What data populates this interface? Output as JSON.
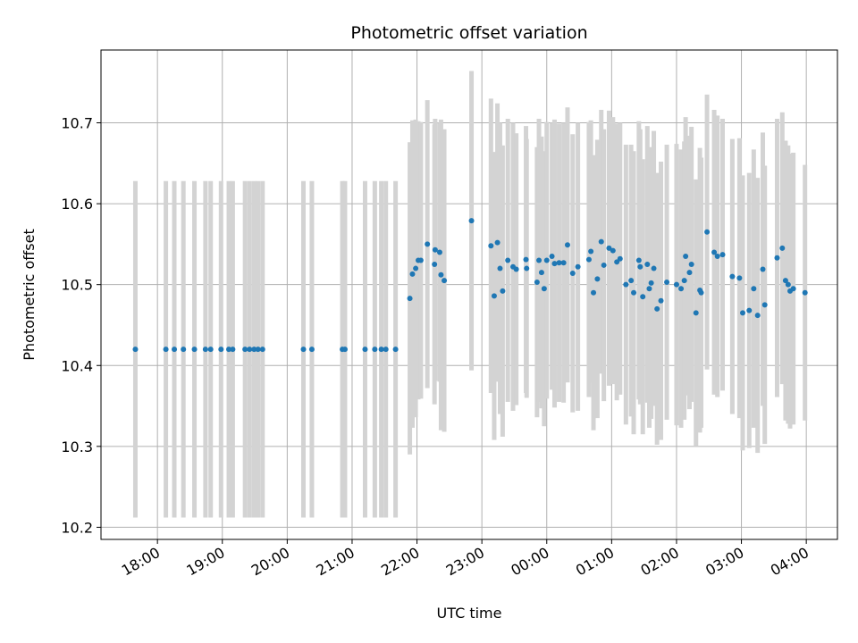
{
  "chart_data": {
    "type": "scatter",
    "title": "Photometric offset variation",
    "xlabel": "UTC time",
    "ylabel": "Photometric offset",
    "x_ticks": [
      "18:00",
      "19:00",
      "20:00",
      "21:00",
      "22:00",
      "23:00",
      "00:00",
      "01:00",
      "02:00",
      "03:00",
      "04:00"
    ],
    "x_tick_hours": [
      18,
      19,
      20,
      21,
      22,
      23,
      24,
      25,
      26,
      27,
      28
    ],
    "y_ticks": [
      "10.2",
      "10.3",
      "10.4",
      "10.5",
      "10.6",
      "10.7"
    ],
    "y_tick_values": [
      10.2,
      10.3,
      10.4,
      10.5,
      10.6,
      10.7
    ],
    "xlim": [
      17.13,
      28.48
    ],
    "ylim": [
      10.185,
      10.79
    ],
    "grid": true,
    "marker_color": "#1f77b4",
    "errorbar_color": "#d3d3d3",
    "x_unit": "hours since 00:00 UTC of the first night (values above 24 fall after midnight)",
    "points": [
      [
        17.66,
        10.42,
        0.208
      ],
      [
        18.13,
        10.42,
        0.208
      ],
      [
        18.26,
        10.42,
        0.208
      ],
      [
        18.4,
        10.42,
        0.208
      ],
      [
        18.57,
        10.42,
        0.208
      ],
      [
        18.74,
        10.42,
        0.208
      ],
      [
        18.82,
        10.42,
        0.208
      ],
      [
        18.98,
        10.42,
        0.208
      ],
      [
        19.1,
        10.42,
        0.208
      ],
      [
        19.16,
        10.42,
        0.208
      ],
      [
        19.35,
        10.42,
        0.208
      ],
      [
        19.42,
        10.42,
        0.208
      ],
      [
        19.49,
        10.42,
        0.208
      ],
      [
        19.55,
        10.42,
        0.208
      ],
      [
        19.62,
        10.42,
        0.208
      ],
      [
        20.25,
        10.42,
        0.208
      ],
      [
        20.38,
        10.42,
        0.208
      ],
      [
        20.85,
        10.42,
        0.208
      ],
      [
        20.89,
        10.42,
        0.208
      ],
      [
        21.2,
        10.42,
        0.208
      ],
      [
        21.35,
        10.42,
        0.208
      ],
      [
        21.45,
        10.42,
        0.208
      ],
      [
        21.52,
        10.42,
        0.208
      ],
      [
        21.67,
        10.42,
        0.208
      ],
      [
        21.89,
        10.483,
        0.193
      ],
      [
        21.93,
        10.513,
        0.19
      ],
      [
        21.98,
        10.52,
        0.184
      ],
      [
        22.02,
        10.53,
        0.172
      ],
      [
        22.06,
        10.53,
        0.171
      ],
      [
        22.16,
        10.55,
        0.178
      ],
      [
        22.27,
        10.525,
        0.173
      ],
      [
        22.28,
        10.543,
        0.162
      ],
      [
        22.35,
        10.54,
        0.16
      ],
      [
        22.37,
        10.512,
        0.192
      ],
      [
        22.42,
        10.505,
        0.187
      ],
      [
        22.84,
        10.579,
        0.185
      ],
      [
        23.14,
        10.548,
        0.182
      ],
      [
        23.19,
        10.486,
        0.178
      ],
      [
        23.24,
        10.552,
        0.172
      ],
      [
        23.28,
        10.52,
        0.18
      ],
      [
        23.32,
        10.492,
        0.18
      ],
      [
        23.4,
        10.53,
        0.175
      ],
      [
        23.48,
        10.522,
        0.178
      ],
      [
        23.53,
        10.519,
        0.168
      ],
      [
        23.68,
        10.531,
        0.165
      ],
      [
        23.69,
        10.52,
        0.16
      ],
      [
        23.85,
        10.503,
        0.167
      ],
      [
        23.88,
        10.53,
        0.175
      ],
      [
        23.92,
        10.515,
        0.168
      ],
      [
        23.96,
        10.495,
        0.17
      ],
      [
        24.0,
        10.53,
        0.171
      ],
      [
        24.08,
        10.535,
        0.165
      ],
      [
        24.12,
        10.526,
        0.178
      ],
      [
        24.19,
        10.527,
        0.172
      ],
      [
        24.26,
        10.527,
        0.173
      ],
      [
        24.32,
        10.549,
        0.17
      ],
      [
        24.4,
        10.514,
        0.172
      ],
      [
        24.48,
        10.522,
        0.178
      ],
      [
        24.65,
        10.531,
        0.17
      ],
      [
        24.68,
        10.541,
        0.162
      ],
      [
        24.72,
        10.49,
        0.17
      ],
      [
        24.78,
        10.507,
        0.172
      ],
      [
        24.84,
        10.553,
        0.163
      ],
      [
        24.88,
        10.524,
        0.168
      ],
      [
        24.96,
        10.545,
        0.17
      ],
      [
        25.02,
        10.542,
        0.165
      ],
      [
        25.08,
        10.528,
        0.171
      ],
      [
        25.13,
        10.532,
        0.168
      ],
      [
        25.22,
        10.5,
        0.173
      ],
      [
        25.3,
        10.505,
        0.168
      ],
      [
        25.34,
        10.49,
        0.175
      ],
      [
        25.42,
        10.53,
        0.172
      ],
      [
        25.44,
        10.522,
        0.17
      ],
      [
        25.48,
        10.485,
        0.17
      ],
      [
        25.55,
        10.525,
        0.171
      ],
      [
        25.58,
        10.495,
        0.172
      ],
      [
        25.61,
        10.502,
        0.168
      ],
      [
        25.65,
        10.52,
        0.17
      ],
      [
        25.7,
        10.47,
        0.168
      ],
      [
        25.76,
        10.48,
        0.172
      ],
      [
        25.85,
        10.503,
        0.17
      ],
      [
        26.0,
        10.5,
        0.174
      ],
      [
        26.07,
        10.495,
        0.172
      ],
      [
        26.12,
        10.505,
        0.172
      ],
      [
        26.14,
        10.535,
        0.172
      ],
      [
        26.2,
        10.515,
        0.169
      ],
      [
        26.23,
        10.525,
        0.17
      ],
      [
        26.3,
        10.465,
        0.165
      ],
      [
        26.36,
        10.493,
        0.176
      ],
      [
        26.38,
        10.49,
        0.167
      ],
      [
        26.47,
        10.565,
        0.17
      ],
      [
        26.58,
        10.54,
        0.176
      ],
      [
        26.63,
        10.535,
        0.174
      ],
      [
        26.71,
        10.537,
        0.168
      ],
      [
        26.86,
        10.51,
        0.17
      ],
      [
        26.97,
        10.508,
        0.173
      ],
      [
        27.02,
        10.465,
        0.17
      ],
      [
        27.12,
        10.468,
        0.17
      ],
      [
        27.19,
        10.495,
        0.172
      ],
      [
        27.25,
        10.462,
        0.17
      ],
      [
        27.33,
        10.519,
        0.169
      ],
      [
        27.36,
        10.475,
        0.172
      ],
      [
        27.55,
        10.533,
        0.172
      ],
      [
        27.63,
        10.545,
        0.168
      ],
      [
        27.68,
        10.505,
        0.173
      ],
      [
        27.72,
        10.5,
        0.172
      ],
      [
        27.75,
        10.492,
        0.17
      ],
      [
        27.8,
        10.495,
        0.168
      ],
      [
        27.98,
        10.49,
        0.158
      ]
    ]
  }
}
